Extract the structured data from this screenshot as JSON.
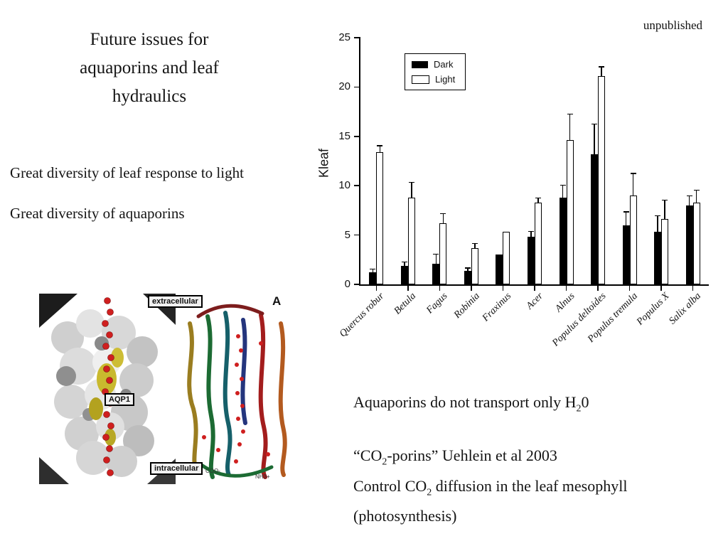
{
  "slide": {
    "title": "Future issues for aquaporins and leaf hydraulics",
    "bullet1": "Great diversity of leaf response to light",
    "bullet2": "Great diversity of aquaporins"
  },
  "chart_data": {
    "type": "bar",
    "annotation": "unpublished",
    "title": "",
    "xlabel": "",
    "ylabel": "Kleaf",
    "ylim": [
      0,
      25
    ],
    "yticks": [
      0,
      5,
      10,
      15,
      20,
      25
    ],
    "grid": false,
    "legend_position": "upper-left-inside",
    "categories": [
      "Quercus robur",
      "Betula",
      "Fagus",
      "Robinia",
      "Fraxinus",
      "Acer",
      "Alnus",
      "Populus deltoides",
      "Populus tremula",
      "Populus X",
      "Salix alba"
    ],
    "series": [
      {
        "name": "Dark",
        "color": "#000000",
        "values": [
          1.2,
          1.9,
          2.1,
          1.4,
          3.0,
          4.8,
          8.8,
          13.2,
          6.0,
          5.3,
          8.0
        ],
        "errors": [
          0.3,
          0.3,
          0.9,
          0.2,
          0,
          0.5,
          1.2,
          3.0,
          1.3,
          1.6,
          0.9
        ]
      },
      {
        "name": "Light",
        "color": "#ffffff",
        "values": [
          13.4,
          8.8,
          6.2,
          3.7,
          5.3,
          8.3,
          14.6,
          21.1,
          9.0,
          6.6,
          8.3
        ],
        "errors": [
          0.6,
          1.5,
          0.9,
          0.4,
          0,
          0.4,
          2.6,
          0.9,
          2.2,
          1.9,
          1.2
        ]
      }
    ]
  },
  "figure": {
    "labels": {
      "extracellular": "extracellular",
      "aqp1": "AQP1",
      "intracellular": "intracellular",
      "panel": "A",
      "coo": "COO-",
      "nh3": "NH3+"
    }
  },
  "bottom": {
    "l1a": "Aquaporins do not transport only H",
    "l1sub": "2",
    "l1b": "0",
    "l2a": "“CO",
    "l2sub": "2",
    "l2b": "-porins”  Uehlein et al 2003",
    "l3a": "Control CO",
    "l3sub": "2",
    "l3b": " diffusion in the leaf mesophyll",
    "l4": "(photosynthesis)"
  }
}
